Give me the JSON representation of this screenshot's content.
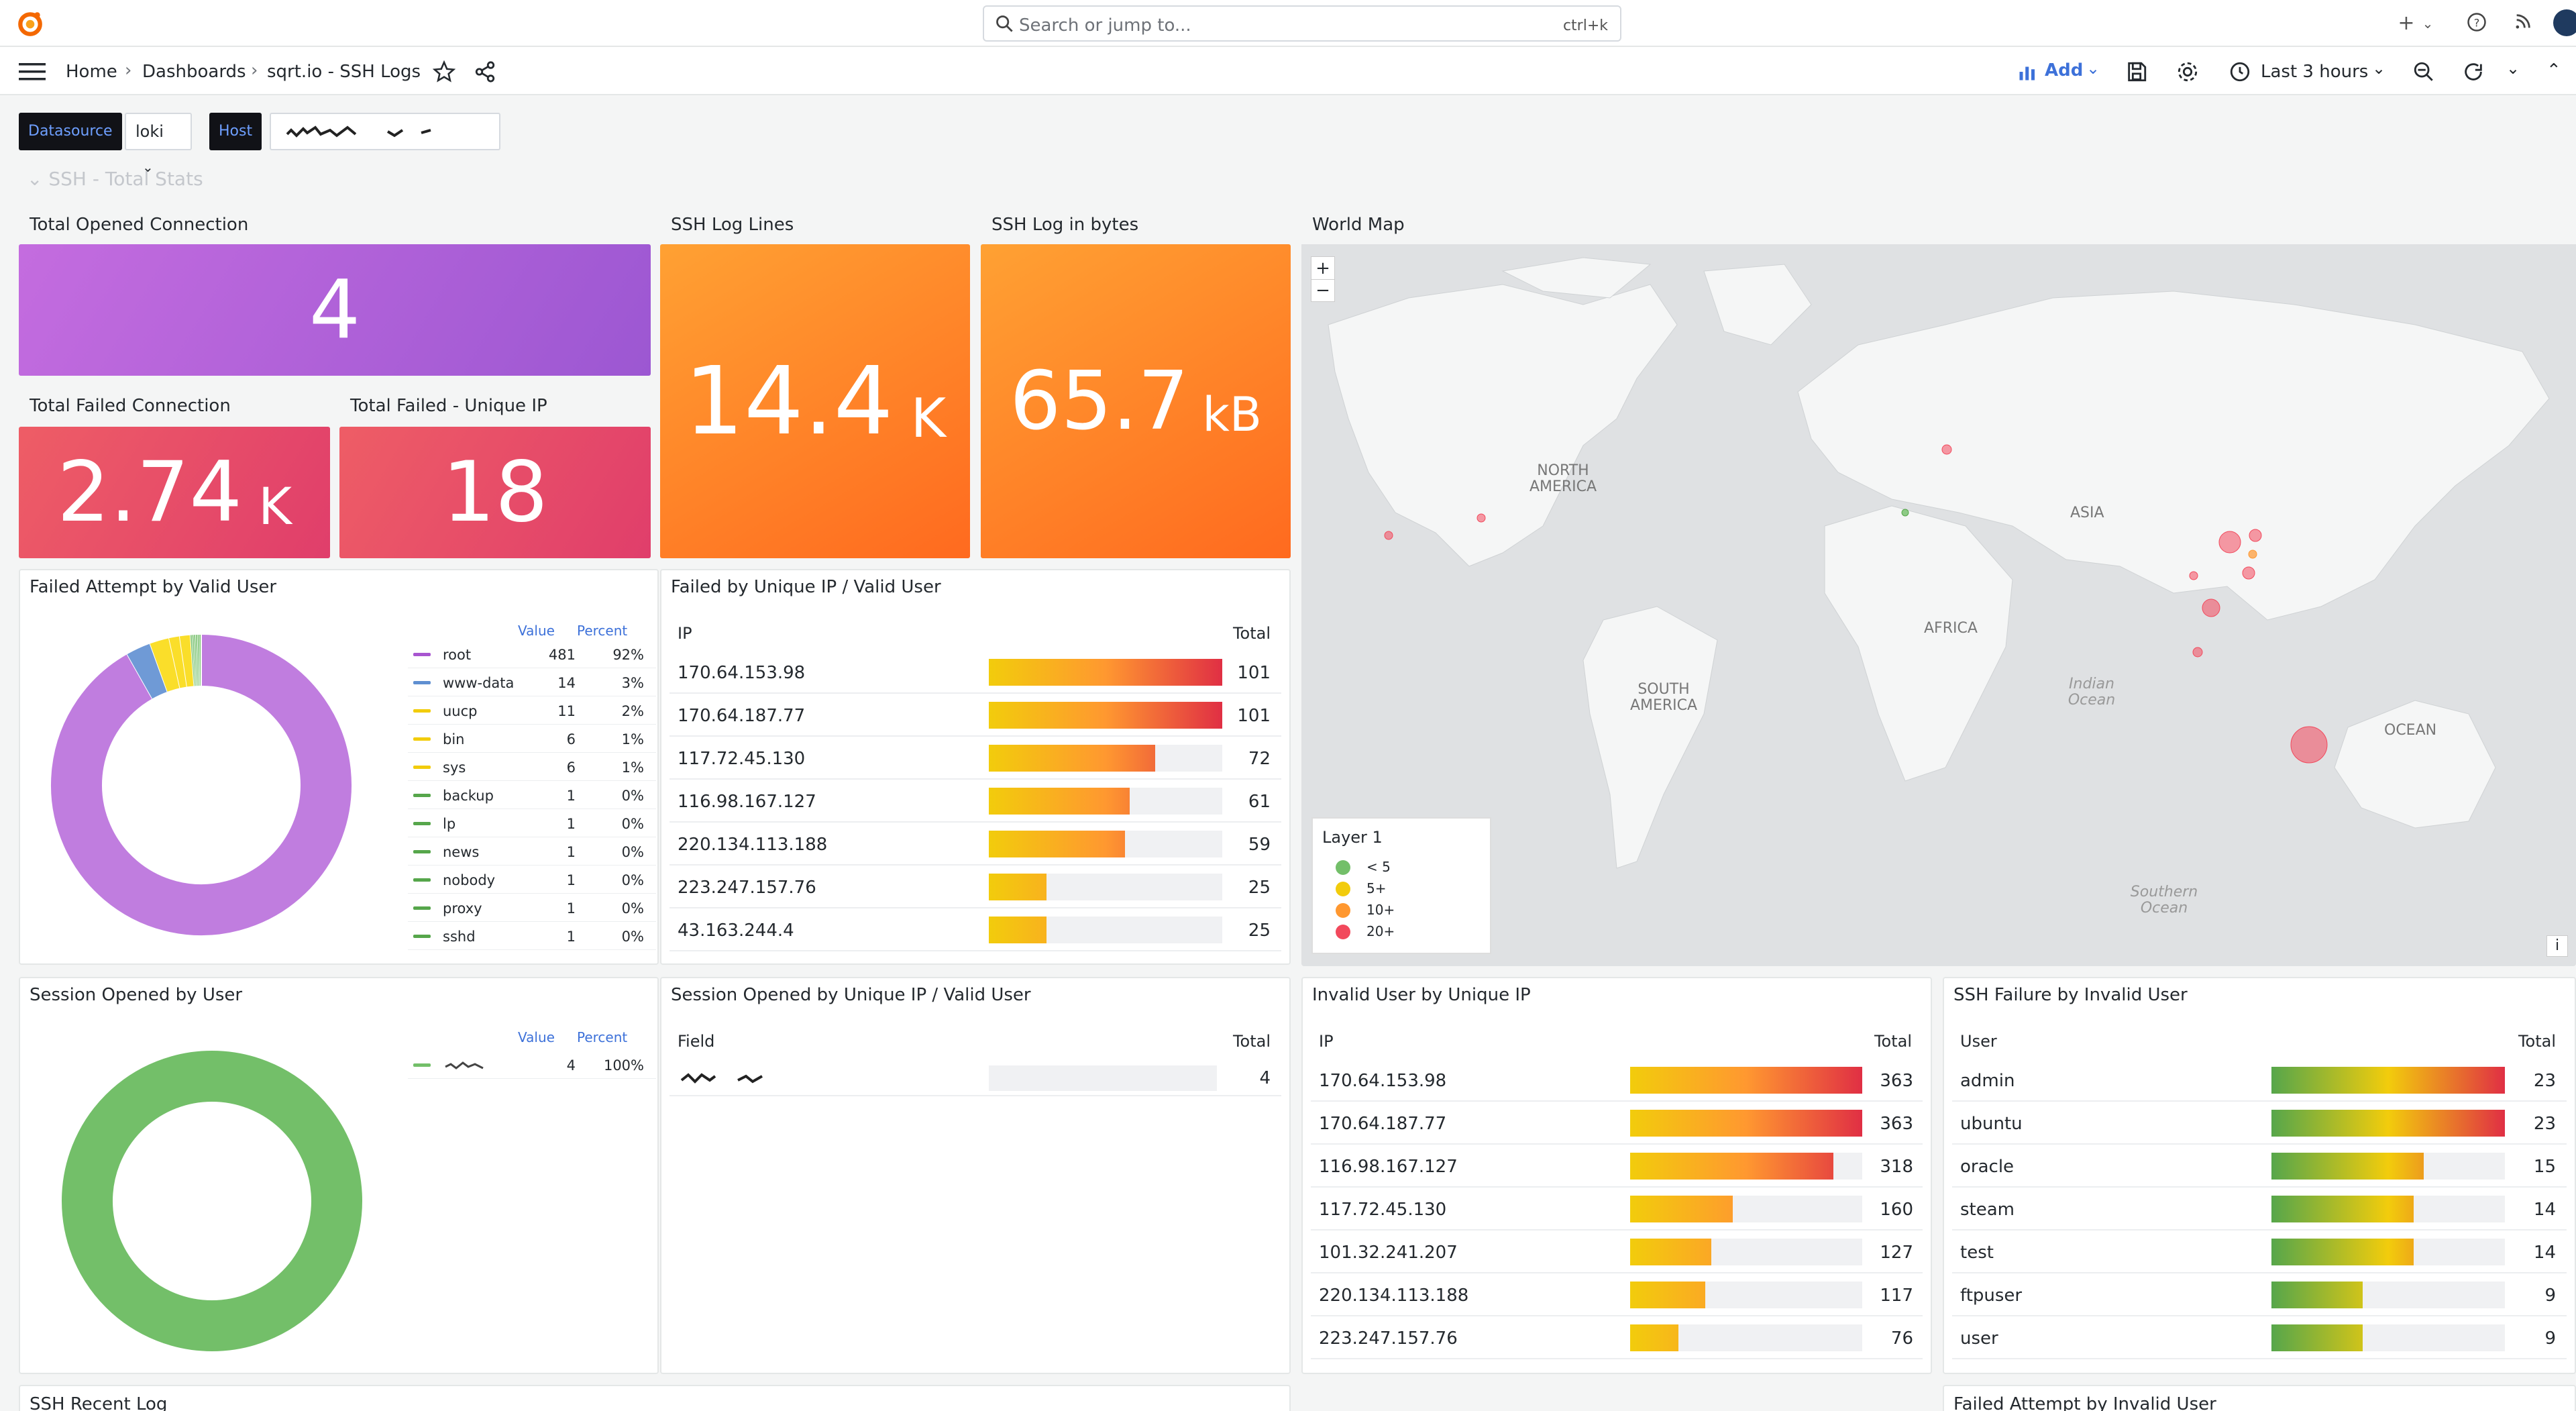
{
  "search": {
    "placeholder": "Search or jump to...",
    "shortcut": "ctrl+k"
  },
  "breadcrumb": {
    "home": "Home",
    "dashboards": "Dashboards",
    "current": "sqrt.io - SSH Logs"
  },
  "toolbar": {
    "add_label": "Add",
    "time_range": "Last 3 hours"
  },
  "variables": {
    "datasource_label": "Datasource",
    "datasource_value": "loki",
    "host_label": "Host"
  },
  "row_title": "SSH - Total Stats",
  "stats": {
    "total_opened": {
      "title": "Total Opened Connection",
      "value": "4",
      "unit": ""
    },
    "ssh_log_lines": {
      "title": "SSH Log Lines",
      "value": "14.4",
      "unit": "K"
    },
    "ssh_log_bytes": {
      "title": "SSH Log in bytes",
      "value": "65.7",
      "unit": "kB"
    },
    "total_failed": {
      "title": "Total Failed Connection",
      "value": "2.74",
      "unit": "K"
    },
    "failed_unique_ip": {
      "title": "Total Failed - Unique IP",
      "value": "18",
      "unit": ""
    }
  },
  "failed_valid_user": {
    "title": "Failed Attempt by Valid User",
    "value_hdr": "Value",
    "percent_hdr": "Percent",
    "items": [
      {
        "name": "root",
        "value": "481",
        "percent": "92%",
        "color": "#a855d0"
      },
      {
        "name": "www-data",
        "value": "14",
        "percent": "3%",
        "color": "#5f8fd1"
      },
      {
        "name": "uucp",
        "value": "11",
        "percent": "2%",
        "color": "#f2cc0c"
      },
      {
        "name": "bin",
        "value": "6",
        "percent": "1%",
        "color": "#f2cc0c"
      },
      {
        "name": "sys",
        "value": "6",
        "percent": "1%",
        "color": "#f2cc0c"
      },
      {
        "name": "backup",
        "value": "1",
        "percent": "0%",
        "color": "#56a64b"
      },
      {
        "name": "lp",
        "value": "1",
        "percent": "0%",
        "color": "#56a64b"
      },
      {
        "name": "news",
        "value": "1",
        "percent": "0%",
        "color": "#56a64b"
      },
      {
        "name": "nobody",
        "value": "1",
        "percent": "0%",
        "color": "#56a64b"
      },
      {
        "name": "proxy",
        "value": "1",
        "percent": "0%",
        "color": "#56a64b"
      },
      {
        "name": "sshd",
        "value": "1",
        "percent": "0%",
        "color": "#56a64b"
      }
    ]
  },
  "failed_unique_ip": {
    "title": "Failed by Unique IP / Valid User",
    "col1": "IP",
    "col2": "Total",
    "max": 101,
    "rows": [
      {
        "ip": "170.64.153.98",
        "total": 101
      },
      {
        "ip": "170.64.187.77",
        "total": 101
      },
      {
        "ip": "117.72.45.130",
        "total": 72
      },
      {
        "ip": "116.98.167.127",
        "total": 61
      },
      {
        "ip": "220.134.113.188",
        "total": 59
      },
      {
        "ip": "223.247.157.76",
        "total": 25
      },
      {
        "ip": "43.163.244.4",
        "total": 25
      }
    ]
  },
  "world_map": {
    "title": "World Map",
    "zoom_in": "+",
    "zoom_out": "−",
    "labels": {
      "na": "NORTH AMERICA",
      "sa": "SOUTH AMERICA",
      "africa": "AFRICA",
      "asia": "ASIA",
      "ocean": "OCEAN",
      "indian": "Indian Ocean",
      "southern": "Southern Ocean"
    },
    "legend_title": "Layer 1",
    "legend": [
      {
        "label": "< 5",
        "color": "#73bf69"
      },
      {
        "label": "5+",
        "color": "#f2cc0c"
      },
      {
        "label": "10+",
        "color": "#ff9830"
      },
      {
        "label": "20+",
        "color": "#f2495c"
      }
    ],
    "info": "i"
  },
  "session_by_user": {
    "title": "Session Opened by User",
    "value_hdr": "Value",
    "percent_hdr": "Percent",
    "value": "4",
    "percent": "100%",
    "color": "#73bf69"
  },
  "session_unique_ip": {
    "title": "Session Opened by Unique IP / Valid User",
    "col1": "Field",
    "col2": "Total",
    "total": "4"
  },
  "invalid_unique_ip": {
    "title": "Invalid User by Unique IP",
    "col1": "IP",
    "col2": "Total",
    "max": 363,
    "rows": [
      {
        "ip": "170.64.153.98",
        "total": 363
      },
      {
        "ip": "170.64.187.77",
        "total": 363
      },
      {
        "ip": "116.98.167.127",
        "total": 318
      },
      {
        "ip": "117.72.45.130",
        "total": 160
      },
      {
        "ip": "101.32.241.207",
        "total": 127
      },
      {
        "ip": "220.134.113.188",
        "total": 117
      },
      {
        "ip": "223.247.157.76",
        "total": 76
      }
    ]
  },
  "failure_invalid_user": {
    "title": "SSH Failure by Invalid User",
    "col1": "User",
    "col2": "Total",
    "max": 23,
    "rows": [
      {
        "ip": "admin",
        "total": 23
      },
      {
        "ip": "ubuntu",
        "total": 23
      },
      {
        "ip": "oracle",
        "total": 15
      },
      {
        "ip": "steam",
        "total": 14
      },
      {
        "ip": "test",
        "total": 14
      },
      {
        "ip": "ftpuser",
        "total": 9
      },
      {
        "ip": "user",
        "total": 9
      }
    ]
  },
  "bottom": {
    "recent_log": "SSH Recent Log",
    "failed_invalid": "Failed Attempt by Invalid User"
  }
}
